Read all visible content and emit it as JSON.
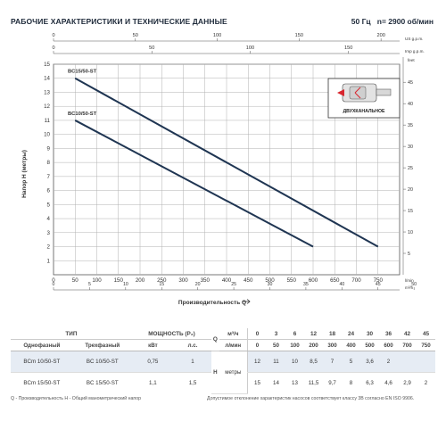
{
  "header": {
    "title": "РАБОЧИЕ ХАРАКТЕРИСТИКИ И ТЕХНИЧЕСКИЕ ДАННЫЕ",
    "freq": "50 Гц",
    "speed": "n= 2900 об/мин"
  },
  "chart_data": {
    "type": "line",
    "ylabel": "Напор H (метры)",
    "xlabel": "Производительность Q",
    "x_unit_bottom": "l/min",
    "y_unit_right": "feet",
    "top_axis1_unit": "US g.p.m.",
    "top_axis2_unit": "Imp g.p.m.",
    "bottom_axis2_unit": "m³/h",
    "xlim": [
      0,
      800
    ],
    "ylim": [
      0,
      15
    ],
    "x_ticks": [
      0,
      50,
      100,
      150,
      200,
      250,
      300,
      350,
      400,
      450,
      500,
      550,
      600,
      650,
      700,
      750
    ],
    "y_ticks": [
      1,
      2,
      3,
      4,
      5,
      6,
      7,
      8,
      9,
      10,
      11,
      12,
      13,
      14,
      15
    ],
    "feet_ticks": [
      5,
      10,
      15,
      20,
      25,
      30,
      35,
      40,
      45
    ],
    "us_gpm_ticks": [
      0,
      50,
      100,
      150,
      200
    ],
    "imp_gpm_ticks": [
      0,
      50,
      100,
      150
    ],
    "m3h_ticks": [
      0,
      5,
      10,
      15,
      20,
      25,
      30,
      35,
      40,
      45,
      50
    ],
    "series": [
      {
        "name": "BC15/50-ST",
        "x": [
          50,
          750
        ],
        "y": [
          14,
          2
        ]
      },
      {
        "name": "BC10/50-ST",
        "x": [
          50,
          600
        ],
        "y": [
          11,
          2
        ]
      }
    ],
    "colors": {
      "line": "#1f3552",
      "grid": "#b0b0b0",
      "axis": "#555555"
    }
  },
  "inset": {
    "label": "ДВУХКАНАЛЬНОЕ",
    "icon": "pump-impeller-icon"
  },
  "table": {
    "type_header": "ТИП",
    "single_phase": "Однофазный",
    "three_phase": "Трехфазный",
    "power_header": "МОЩНОСТЬ (P₂)",
    "kw": "кВт",
    "hp": "л.с.",
    "q_letter": "Q",
    "m3h": "м³/ч",
    "lmin": "л/мин",
    "h_letter": "H",
    "meters": "метры",
    "q_m3h": [
      "0",
      "3",
      "6",
      "12",
      "18",
      "24",
      "30",
      "36",
      "42",
      "45"
    ],
    "q_lmin": [
      "0",
      "50",
      "100",
      "200",
      "300",
      "400",
      "500",
      "600",
      "700",
      "750"
    ],
    "rows": [
      {
        "single": "BCm 10/50-ST",
        "three": "BC 10/50-ST",
        "kw": "0,75",
        "hp": "1",
        "h": [
          "12",
          "11",
          "10",
          "8,5",
          "7",
          "5",
          "3,6",
          "2",
          "",
          ""
        ]
      },
      {
        "single": "BCm 15/50-ST",
        "three": "BC 15/50-ST",
        "kw": "1,1",
        "hp": "1,5",
        "h": [
          "15",
          "14",
          "13",
          "11,5",
          "9,7",
          "8",
          "6,3",
          "4,6",
          "2,9",
          "2"
        ]
      }
    ]
  },
  "footer": {
    "left": "Q - Производительность   H - Общий манометрический напор",
    "right": "Допустимое отклонение характеристик насосов соответствует классу 3В согласно EN ISO 9906."
  }
}
